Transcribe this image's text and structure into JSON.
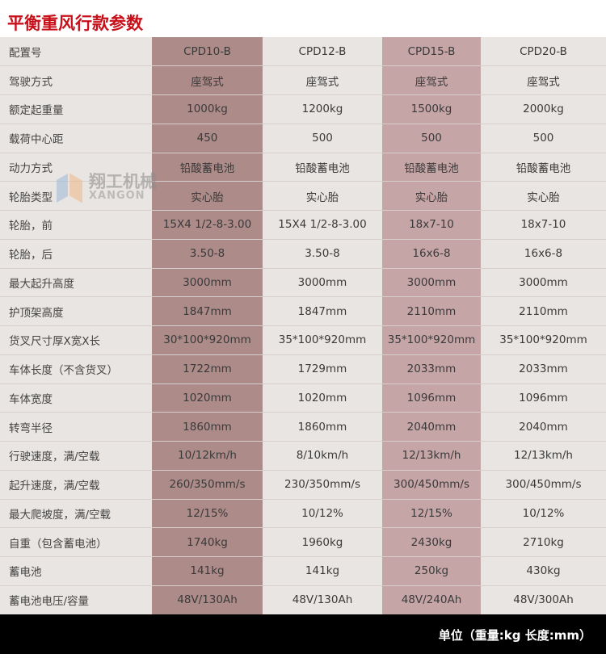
{
  "title": "平衡重风行款参数",
  "colors": {
    "title": "#c8101a",
    "row_bg": "#e9e5e2",
    "col1_bg": "#ac8b89",
    "col3_bg": "#c6a5a6",
    "footer_bg": "#000000"
  },
  "watermark": {
    "cn": "翔工机械",
    "en": "XANGON"
  },
  "rows": [
    {
      "label": "配置号",
      "values": [
        "CPD10-B",
        "CPD12-B",
        "CPD15-B",
        "CPD20-B"
      ]
    },
    {
      "label": "驾驶方式",
      "values": [
        "座驾式",
        "座驾式",
        "座驾式",
        "座驾式"
      ]
    },
    {
      "label": "额定起重量",
      "values": [
        "1000kg",
        "1200kg",
        "1500kg",
        "2000kg"
      ]
    },
    {
      "label": "载荷中心距",
      "values": [
        "450",
        "500",
        "500",
        "500"
      ]
    },
    {
      "label": "动力方式",
      "values": [
        "铅酸蓄电池",
        "铅酸蓄电池",
        "铅酸蓄电池",
        "铅酸蓄电池"
      ]
    },
    {
      "label": "轮胎类型",
      "values": [
        "实心胎",
        "实心胎",
        "实心胎",
        "实心胎"
      ]
    },
    {
      "label": "轮胎，前",
      "values": [
        "15X4 1/2-8-3.00",
        "15X4 1/2-8-3.00",
        "18x7-10",
        "18x7-10"
      ]
    },
    {
      "label": "轮胎，后",
      "values": [
        "3.50-8",
        "3.50-8",
        "16x6-8",
        "16x6-8"
      ]
    },
    {
      "label": "最大起升高度",
      "values": [
        "3000mm",
        "3000mm",
        "3000mm",
        "3000mm"
      ]
    },
    {
      "label": "护顶架高度",
      "values": [
        "1847mm",
        "1847mm",
        "2110mm",
        "2110mm"
      ]
    },
    {
      "label": "货叉尺寸厚X宽X长",
      "values": [
        "30*100*920mm",
        "35*100*920mm",
        "35*100*920mm",
        "35*100*920mm"
      ]
    },
    {
      "label": "车体长度（不含货叉）",
      "values": [
        "1722mm",
        "1729mm",
        "2033mm",
        "2033mm"
      ]
    },
    {
      "label": "车体宽度",
      "values": [
        "1020mm",
        "1020mm",
        "1096mm",
        "1096mm"
      ]
    },
    {
      "label": "转弯半径",
      "values": [
        "1860mm",
        "1860mm",
        "2040mm",
        "2040mm"
      ]
    },
    {
      "label": "行驶速度，满/空载",
      "values": [
        "10/12km/h",
        "8/10km/h",
        "12/13km/h",
        "12/13km/h"
      ]
    },
    {
      "label": "起升速度，满/空载",
      "values": [
        "260/350mm/s",
        "230/350mm/s",
        "300/450mm/s",
        "300/450mm/s"
      ]
    },
    {
      "label": "最大爬坡度，满/空载",
      "values": [
        "12/15%",
        "10/12%",
        "12/15%",
        "10/12%"
      ]
    },
    {
      "label": "自重（包含蓄电池）",
      "values": [
        "1740kg",
        "1960kg",
        "2430kg",
        "2710kg"
      ]
    },
    {
      "label": "蓄电池",
      "values": [
        "141kg",
        "141kg",
        "250kg",
        "430kg"
      ]
    },
    {
      "label": "蓄电池电压/容量",
      "values": [
        "48V/130Ah",
        "48V/130Ah",
        "48V/240Ah",
        "48V/300Ah"
      ]
    }
  ],
  "footer": "单位（重量:kg  长度:mm）"
}
